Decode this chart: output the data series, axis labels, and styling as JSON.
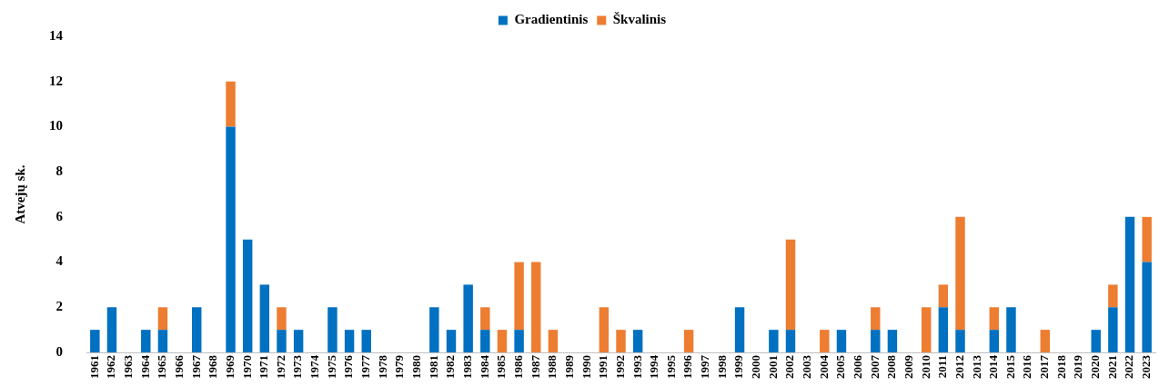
{
  "chart_data": {
    "type": "bar",
    "stacked": true,
    "ylabel": "Atvejų sk.",
    "legend": "top",
    "grid": false,
    "ylim": [
      0,
      14
    ],
    "yticks": [
      0,
      2,
      4,
      6,
      8,
      10,
      12,
      14
    ],
    "categories": [
      "1961",
      "1962",
      "1963",
      "1964",
      "1965",
      "1966",
      "1967",
      "1968",
      "1969",
      "1970",
      "1971",
      "1972",
      "1973",
      "1974",
      "1975",
      "1976",
      "1977",
      "1978",
      "1979",
      "1980",
      "1981",
      "1982",
      "1983",
      "1984",
      "1985",
      "1986",
      "1987",
      "1988",
      "1989",
      "1990",
      "1991",
      "1992",
      "1993",
      "1994",
      "1995",
      "1996",
      "1997",
      "1998",
      "1999",
      "2000",
      "2001",
      "2002",
      "2003",
      "2004",
      "2005",
      "2006",
      "2007",
      "2008",
      "2009",
      "2010",
      "2011",
      "2012",
      "2013",
      "2014",
      "2015",
      "2016",
      "2017",
      "2018",
      "2019",
      "2020",
      "2021",
      "2022",
      "2023"
    ],
    "series": [
      {
        "name": "Gradientinis",
        "color": "#0070c0",
        "values": [
          1,
          2,
          0,
          1,
          1,
          0,
          2,
          0,
          10,
          5,
          3,
          1,
          1,
          0,
          2,
          1,
          1,
          0,
          0,
          0,
          2,
          1,
          3,
          1,
          0,
          1,
          0,
          0,
          0,
          0,
          0,
          0,
          1,
          0,
          0,
          0,
          0,
          0,
          2,
          0,
          1,
          1,
          0,
          0,
          1,
          0,
          1,
          1,
          0,
          0,
          2,
          1,
          0,
          1,
          2,
          0,
          0,
          0,
          0,
          1,
          2,
          6,
          4
        ]
      },
      {
        "name": "Škvalinis",
        "color": "#ed7d31",
        "values": [
          0,
          0,
          0,
          0,
          1,
          0,
          0,
          0,
          2,
          0,
          0,
          1,
          0,
          0,
          0,
          0,
          0,
          0,
          0,
          0,
          0,
          0,
          0,
          1,
          1,
          3,
          4,
          1,
          0,
          0,
          2,
          1,
          0,
          0,
          0,
          1,
          0,
          0,
          0,
          0,
          0,
          4,
          0,
          1,
          0,
          0,
          1,
          0,
          0,
          2,
          1,
          5,
          0,
          1,
          0,
          0,
          1,
          0,
          0,
          0,
          1,
          0,
          2
        ]
      }
    ]
  }
}
